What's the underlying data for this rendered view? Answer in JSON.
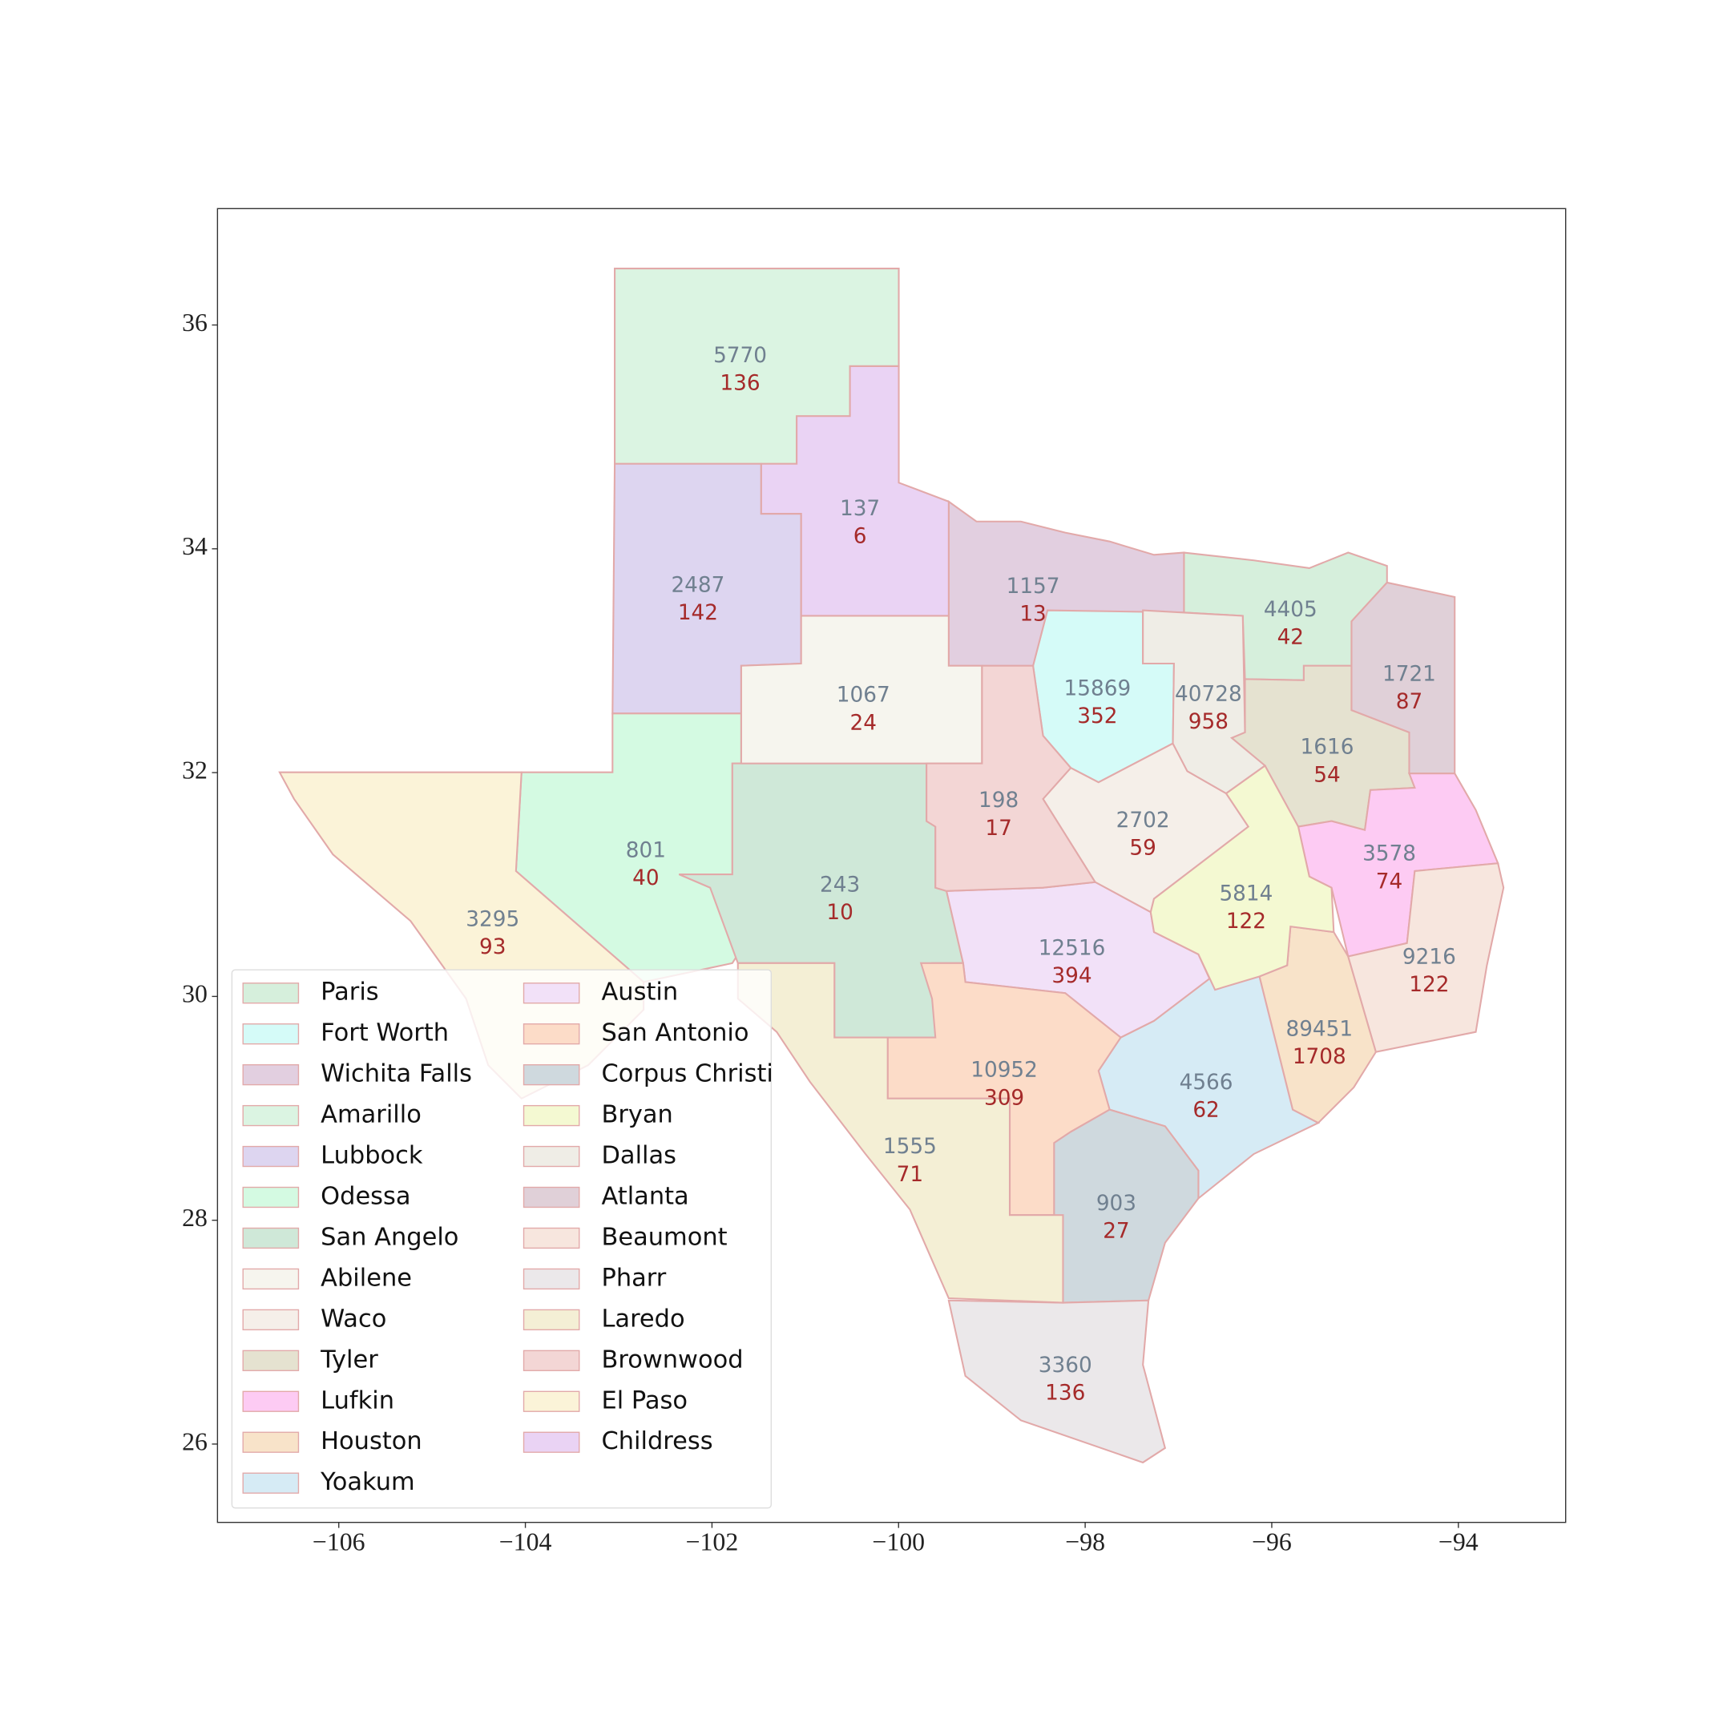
{
  "chart_data": {
    "type": "map",
    "xlim": [
      -107.3,
      -92.85
    ],
    "ylim": [
      25.3,
      37.04
    ],
    "xticks": [
      {
        "value": -106,
        "label": "−106"
      },
      {
        "value": -104,
        "label": "−104"
      },
      {
        "value": -102,
        "label": "−102"
      },
      {
        "value": -100,
        "label": "−100"
      },
      {
        "value": -98,
        "label": "−98"
      },
      {
        "value": -96,
        "label": "−96"
      },
      {
        "value": -94,
        "label": "−94"
      }
    ],
    "yticks": [
      26,
      28,
      30,
      32,
      34,
      36
    ],
    "regions": [
      {
        "name": "Paris",
        "color": "#d6efdc",
        "values": [
          4405,
          42
        ]
      },
      {
        "name": "Fort Worth",
        "color": "#d5fbf8",
        "values": [
          15869,
          352
        ]
      },
      {
        "name": "Wichita Falls",
        "color": "#e2cfe0",
        "values": [
          1157,
          13
        ]
      },
      {
        "name": "Amarillo",
        "color": "#dbf4e2",
        "values": [
          5770,
          136
        ]
      },
      {
        "name": "Lubbock",
        "color": "#ddd5f0",
        "values": [
          2487,
          142
        ]
      },
      {
        "name": "Odessa",
        "color": "#d4fae2",
        "values": [
          801,
          40
        ]
      },
      {
        "name": "San Angelo",
        "color": "#cfe8d8",
        "values": [
          243,
          10
        ]
      },
      {
        "name": "Abilene",
        "color": "#f6f5ee",
        "values": [
          1067,
          24
        ]
      },
      {
        "name": "Waco",
        "color": "#f5efe9",
        "values": [
          2702,
          59
        ]
      },
      {
        "name": "Tyler",
        "color": "#e5e2d0",
        "values": [
          1616,
          54
        ]
      },
      {
        "name": "Lufkin",
        "color": "#fdcbf3",
        "values": [
          3578,
          74
        ]
      },
      {
        "name": "Houston",
        "color": "#f8e3c9",
        "values": [
          89451,
          1708
        ]
      },
      {
        "name": "Yoakum",
        "color": "#d6ebf5",
        "values": [
          4566,
          62
        ]
      },
      {
        "name": "Austin",
        "color": "#f2e1f8",
        "values": [
          12516,
          394
        ]
      },
      {
        "name": "San Antonio",
        "color": "#fcdcc8",
        "values": [
          10952,
          309
        ]
      },
      {
        "name": "Corpus Christi",
        "color": "#cfd9de",
        "values": [
          903,
          27
        ]
      },
      {
        "name": "Bryan",
        "color": "#f4f9d2",
        "values": [
          5814,
          122
        ]
      },
      {
        "name": "Dallas",
        "color": "#efede6",
        "values": [
          40728,
          958
        ]
      },
      {
        "name": "Atlanta",
        "color": "#e0d0d8",
        "values": [
          1721,
          87
        ]
      },
      {
        "name": "Beaumont",
        "color": "#f7e6de",
        "values": [
          9216,
          122
        ]
      },
      {
        "name": "Pharr",
        "color": "#ebe8ea",
        "values": [
          3360,
          136
        ]
      },
      {
        "name": "Laredo",
        "color": "#f4efd5",
        "values": [
          1555,
          71
        ]
      },
      {
        "name": "Brownwood",
        "color": "#f3d6d5",
        "values": [
          198,
          17
        ]
      },
      {
        "name": "El Paso",
        "color": "#fbf3d8",
        "values": [
          3295,
          93
        ]
      },
      {
        "name": "Childress",
        "color": "#ead3f4",
        "values": [
          137,
          6
        ]
      }
    ]
  }
}
